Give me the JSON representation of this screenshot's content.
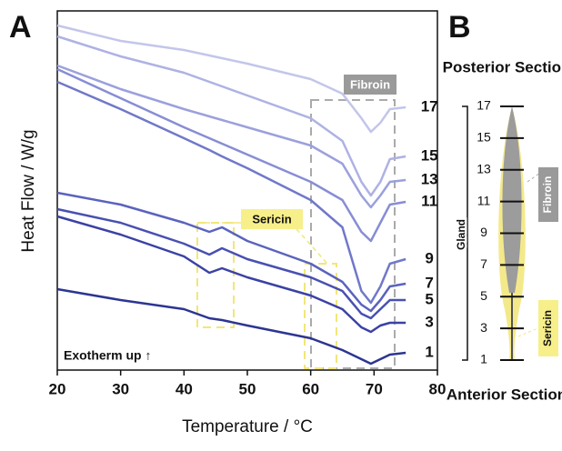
{
  "chart_data": {
    "type": "line",
    "panel_label": "A",
    "xlabel": "Temperature / °C",
    "ylabel": "Heat Flow / W/g",
    "x": [
      20,
      30,
      40,
      44,
      46,
      50,
      60,
      65,
      68,
      69.5,
      71,
      72.5,
      75
    ],
    "xlim": [
      20,
      80
    ],
    "xticks": [
      20,
      30,
      40,
      50,
      60,
      70,
      80
    ],
    "ylim": [
      0,
      392
    ],
    "series": [
      {
        "name": "17",
        "color": "#c3c6ea",
        "values": [
          379,
          362,
          352,
          346,
          343,
          337,
          320,
          304,
          277,
          262,
          272,
          287,
          289
        ]
      },
      {
        "name": "15",
        "color": "#aeb2e3",
        "values": [
          367,
          345,
          327,
          317,
          312,
          302,
          277,
          252,
          207,
          192,
          207,
          232,
          235
        ]
      },
      {
        "name": "13",
        "color": "#9ba0dc",
        "values": [
          335,
          309,
          287,
          279,
          275,
          267,
          247,
          227,
          192,
          179,
          192,
          207,
          209
        ]
      },
      {
        "name": "11",
        "color": "#878dd4",
        "values": [
          331,
          299,
          267,
          255,
          249,
          237,
          207,
          187,
          152,
          142,
          162,
          182,
          185
        ]
      },
      {
        "name": "9",
        "color": "#7078c9",
        "values": [
          317,
          287,
          255,
          242,
          235,
          222,
          187,
          157,
          87,
          74,
          92,
          117,
          122
        ]
      },
      {
        "name": "7",
        "color": "#5a63bd",
        "values": [
          195,
          182,
          162,
          152,
          157,
          142,
          117,
          97,
          72,
          65,
          77,
          92,
          95
        ]
      },
      {
        "name": "5",
        "color": "#4850b0",
        "values": [
          177,
          162,
          139,
          127,
          134,
          122,
          102,
          87,
          62,
          57,
          67,
          77,
          77
        ]
      },
      {
        "name": "3",
        "color": "#3a42a4",
        "values": [
          169,
          149,
          125,
          107,
          112,
          102,
          82,
          67,
          47,
          42,
          49,
          52,
          52
        ]
      },
      {
        "name": "1",
        "color": "#2c3591",
        "values": [
          89,
          77,
          67,
          57,
          55,
          49,
          35,
          22,
          12,
          7,
          12,
          17,
          19
        ]
      }
    ],
    "annotations": {
      "fibroin": "Fibroin",
      "sericin": "Sericin",
      "exotherm": "Exotherm up ↑"
    }
  },
  "gland_diagram": {
    "panel_label": "B",
    "top_label": "Posterior Section",
    "bottom_label": "Anterior Section",
    "bracket_label": "Gland",
    "ylim": [
      1,
      17
    ],
    "yticks": [
      1,
      3,
      5,
      7,
      9,
      11,
      13,
      15,
      17
    ],
    "fibroin": "Fibroin",
    "sericin": "Sericin"
  }
}
